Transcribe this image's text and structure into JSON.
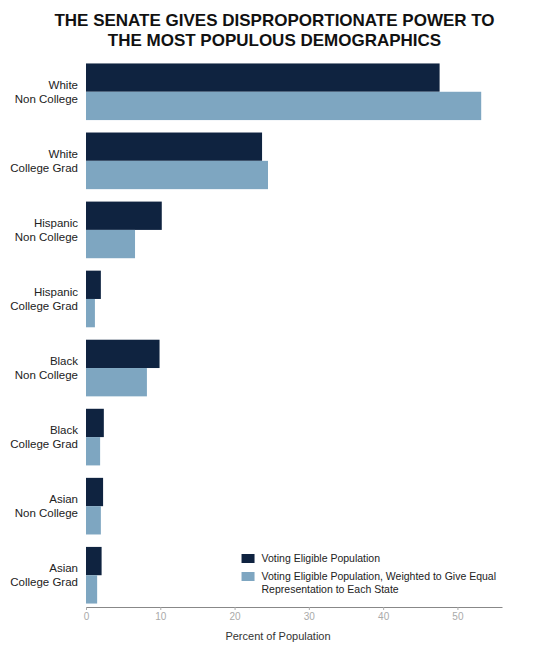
{
  "chart_data": {
    "type": "bar",
    "orientation": "horizontal",
    "title": "THE SENATE GIVES DISPROPORTIONATE POWER TO THE MOST POPULOUS DEMOGRAPHICS",
    "x_label": "Percent of Population",
    "categories": [
      "White Non College",
      "White College Grad",
      "Hispanic Non College",
      "Hispanic College Grad",
      "Black Non College",
      "Black College Grad",
      "Asian Non College",
      "Asian College Grad"
    ],
    "series": [
      {
        "name": "Voting Eligible Population",
        "color": "#0f2340",
        "values": [
          47.6,
          23.7,
          10.2,
          2.0,
          9.9,
          2.4,
          2.3,
          2.1
        ]
      },
      {
        "name": "Voting Eligible Population, Weighted to Give Equal Representation to Each State",
        "color": "#7ea6c1",
        "values": [
          53.2,
          24.5,
          6.6,
          1.2,
          8.2,
          1.9,
          2.0,
          1.5
        ]
      }
    ],
    "xlim": [
      0,
      56
    ],
    "xticks": [
      0,
      10,
      20,
      30,
      40,
      50
    ],
    "grid": false,
    "legend": "lower right"
  }
}
